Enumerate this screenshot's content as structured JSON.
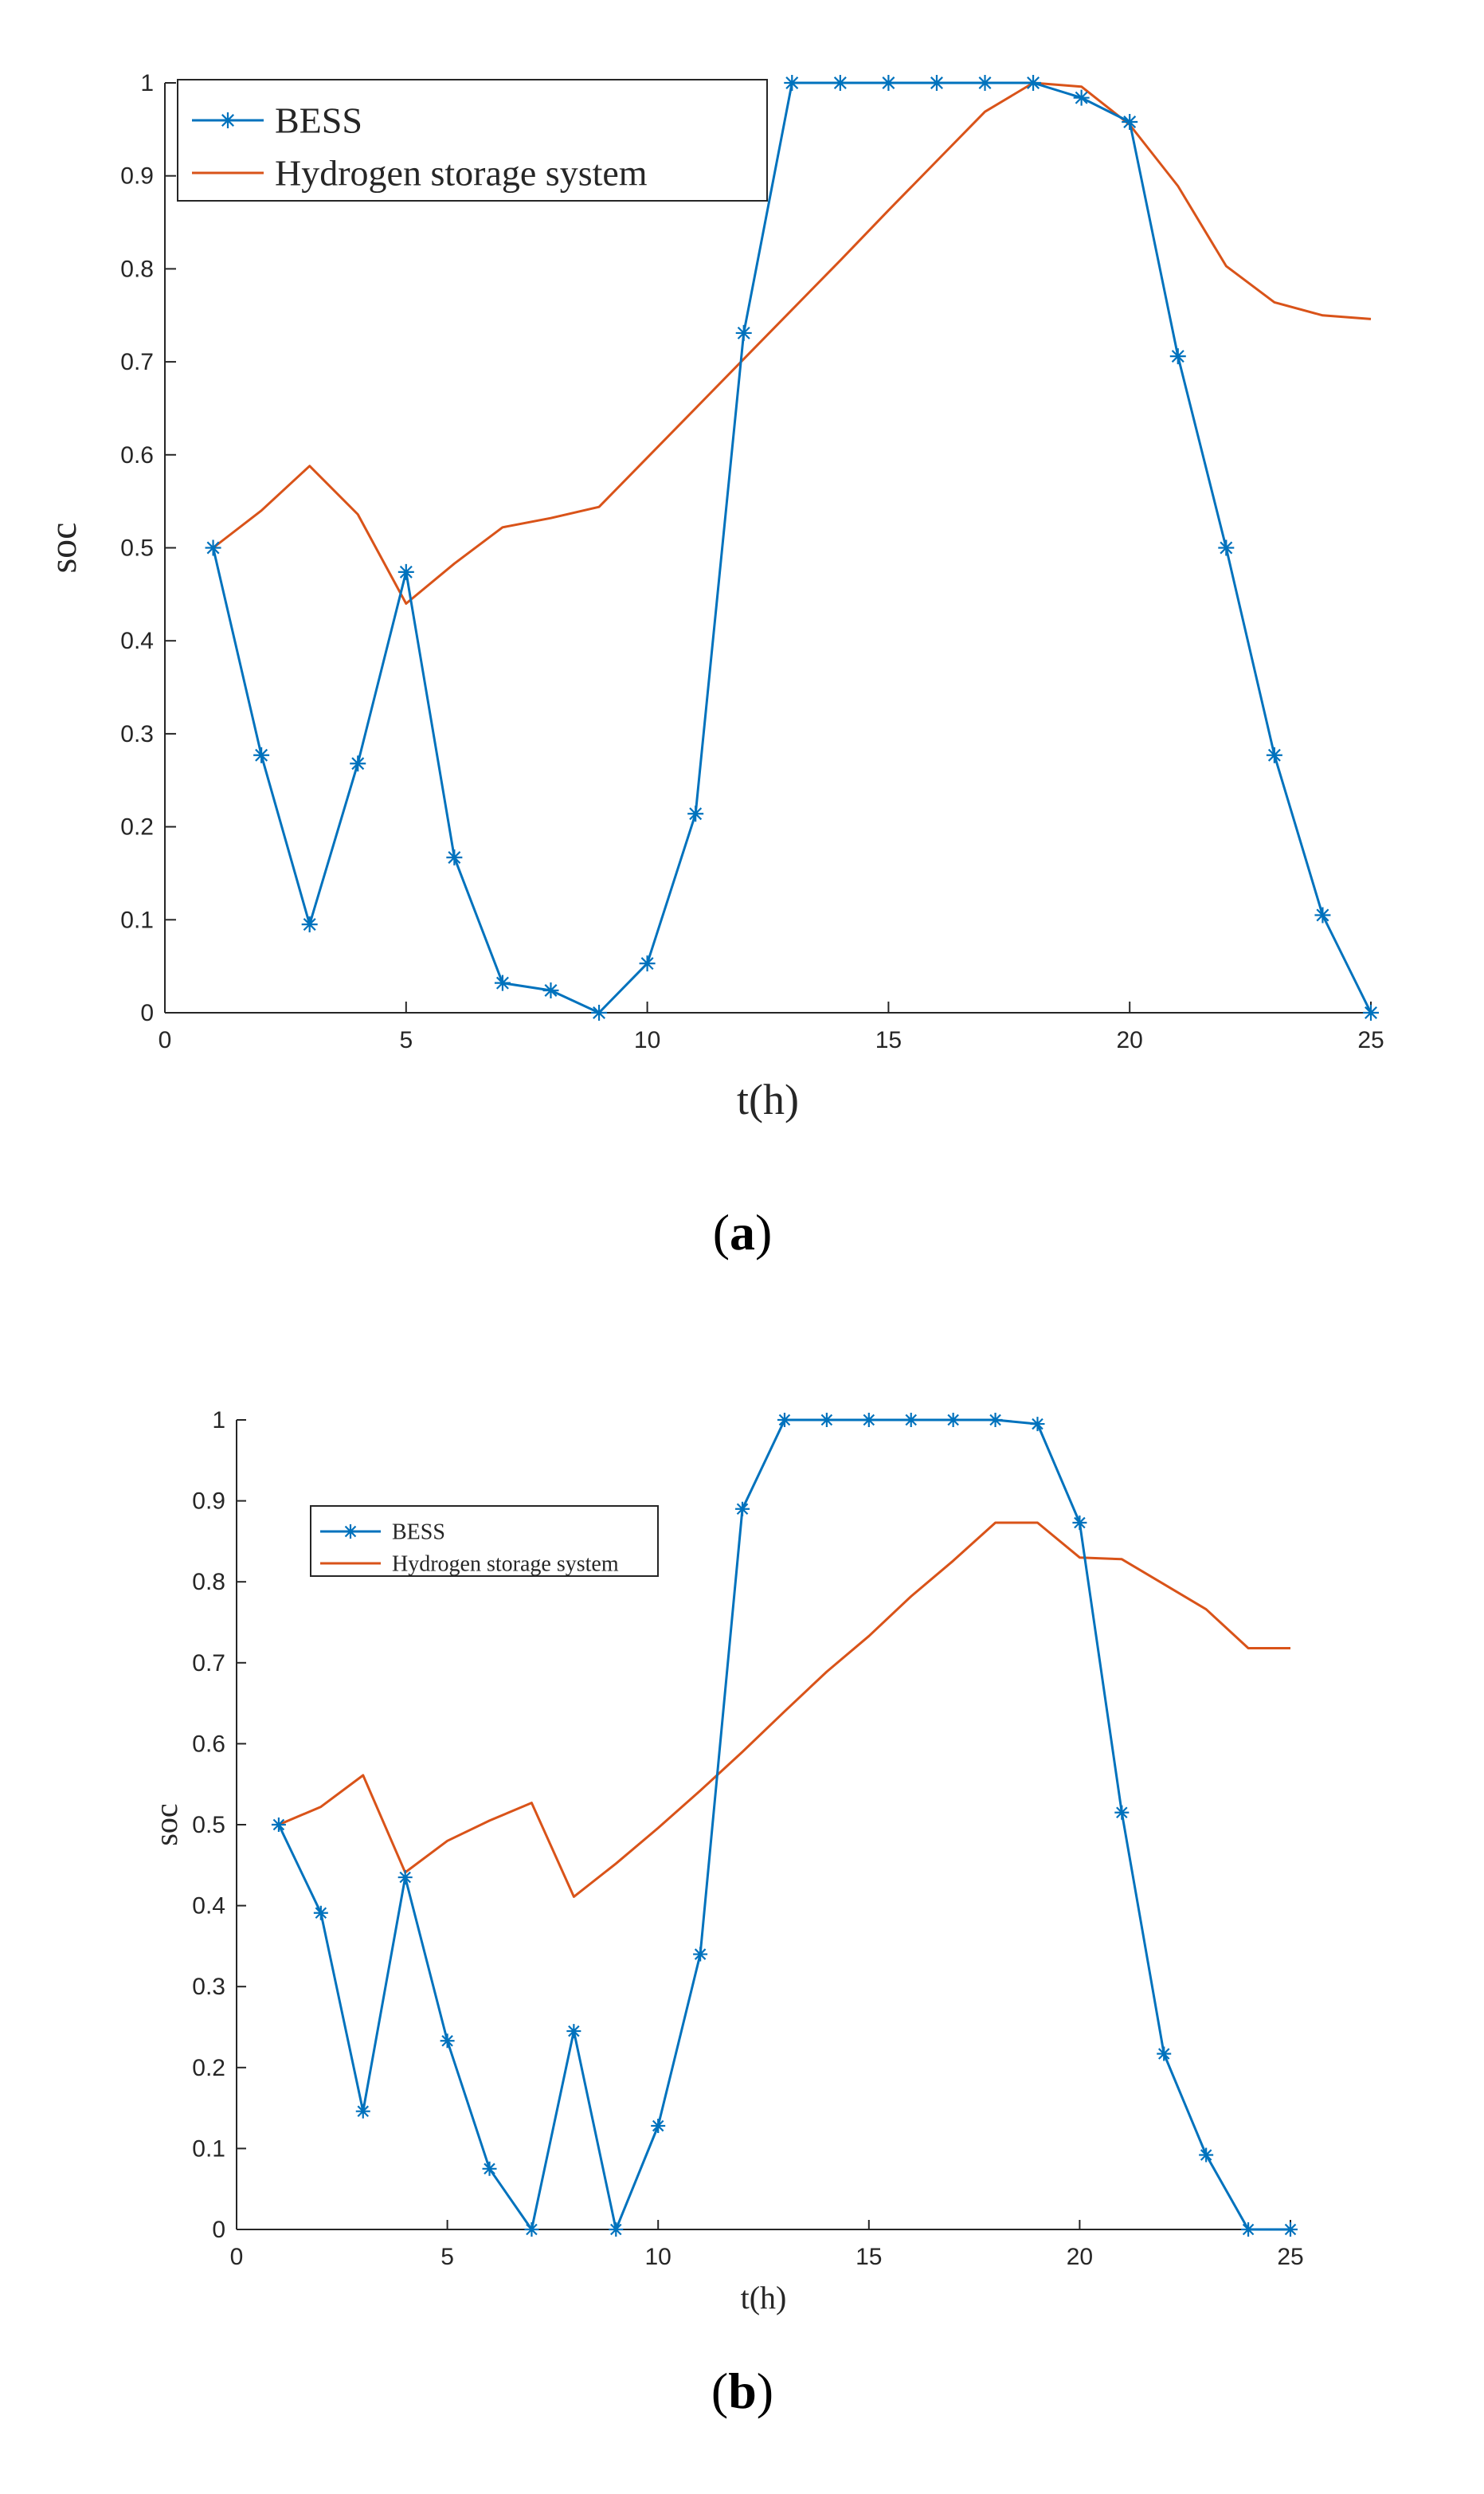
{
  "panel_labels": [
    "(a)",
    "(b)"
  ],
  "colors": {
    "bess": "#0072BD",
    "hydrogen": "#D95319",
    "axis": "#262626",
    "background": "#ffffff"
  },
  "chart_data": [
    {
      "type": "line",
      "panel": "a",
      "title": "",
      "xlabel": "t(h)",
      "ylabel": "soc",
      "xlim": [
        0,
        25
      ],
      "ylim": [
        0,
        1
      ],
      "xticks": [
        0,
        5,
        10,
        15,
        20,
        25
      ],
      "yticks": [
        0,
        0.1,
        0.2,
        0.3,
        0.4,
        0.5,
        0.6,
        0.7,
        0.8,
        0.9,
        1
      ],
      "grid": false,
      "legend_position": "top-left",
      "x": [
        1,
        2,
        3,
        4,
        5,
        6,
        7,
        8,
        9,
        10,
        11,
        12,
        13,
        14,
        15,
        16,
        17,
        18,
        19,
        20,
        21,
        22,
        23,
        24,
        25
      ],
      "series": [
        {
          "name": "BESS",
          "marker": "asterisk",
          "color": "#0072BD",
          "values": [
            0.5,
            0.277,
            0.095,
            0.268,
            0.474,
            0.167,
            0.032,
            0.024,
            0.0,
            0.053,
            0.214,
            0.731,
            1.0,
            1.0,
            1.0,
            1.0,
            1.0,
            1.0,
            0.984,
            0.958,
            0.706,
            0.5,
            0.277,
            0.105,
            0.0
          ]
        },
        {
          "name": "Hydrogen storage system",
          "marker": "none",
          "color": "#D95319",
          "values": [
            0.5,
            0.54,
            0.588,
            0.536,
            0.44,
            0.483,
            0.522,
            0.532,
            0.544,
            0.597,
            0.65,
            0.703,
            0.756,
            0.809,
            0.863,
            0.916,
            0.969,
            1.0,
            0.996,
            0.955,
            0.889,
            0.803,
            0.764,
            0.75,
            0.746
          ]
        }
      ]
    },
    {
      "type": "line",
      "panel": "b",
      "title": "",
      "xlabel": "t(h)",
      "ylabel": "soc",
      "xlim": [
        0,
        25
      ],
      "ylim": [
        0,
        1
      ],
      "xticks": [
        0,
        5,
        10,
        15,
        20,
        25
      ],
      "yticks": [
        0,
        0.1,
        0.2,
        0.3,
        0.4,
        0.5,
        0.6,
        0.7,
        0.8,
        0.9,
        1
      ],
      "grid": false,
      "legend_position": "top-left",
      "x": [
        1,
        2,
        3,
        4,
        5,
        6,
        7,
        8,
        9,
        10,
        11,
        12,
        13,
        14,
        15,
        16,
        17,
        18,
        19,
        20,
        21,
        22,
        23,
        24,
        25
      ],
      "series": [
        {
          "name": "BESS",
          "marker": "asterisk",
          "color": "#0072BD",
          "values": [
            0.5,
            0.391,
            0.146,
            0.435,
            0.233,
            0.075,
            0.0,
            0.245,
            0.0,
            0.128,
            0.34,
            0.89,
            1.0,
            1.0,
            1.0,
            1.0,
            1.0,
            1.0,
            0.995,
            0.873,
            0.515,
            0.217,
            0.092,
            0.0,
            0.0
          ]
        },
        {
          "name": "Hydrogen storage system",
          "marker": "none",
          "color": "#D95319",
          "values": [
            0.5,
            0.522,
            0.561,
            0.441,
            0.48,
            0.505,
            0.527,
            0.411,
            0.452,
            0.496,
            0.542,
            0.59,
            0.64,
            0.689,
            0.733,
            0.782,
            0.826,
            0.873,
            0.873,
            0.83,
            0.828,
            0.797,
            0.766,
            0.718,
            0.718
          ]
        }
      ]
    }
  ]
}
